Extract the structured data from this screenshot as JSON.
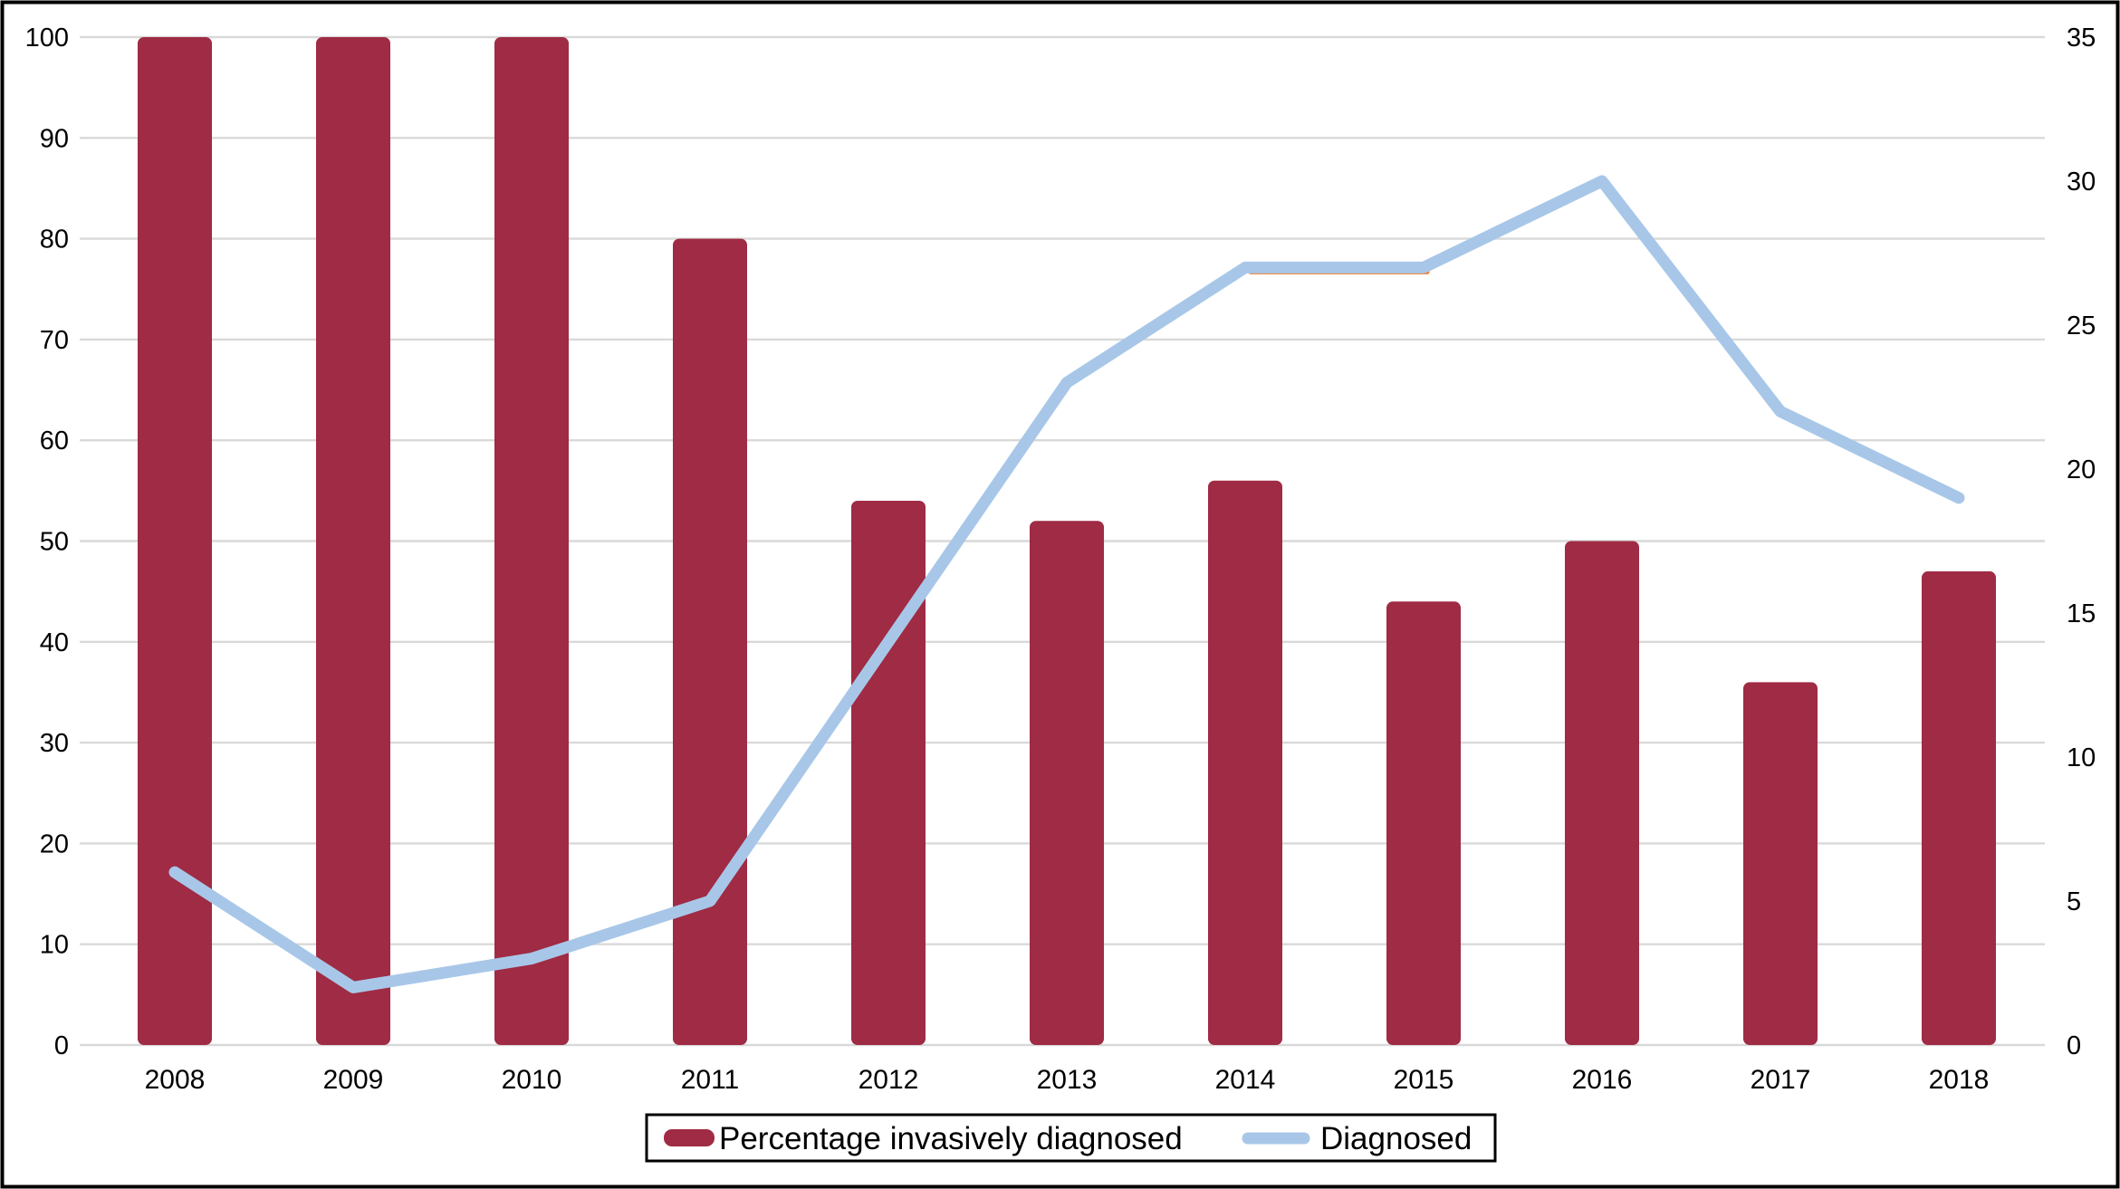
{
  "chart_data": {
    "type": "bar",
    "combo": true,
    "title": "",
    "categories": [
      "2008",
      "2009",
      "2010",
      "2011",
      "2012",
      "2013",
      "2014",
      "2015",
      "2016",
      "2017",
      "2018"
    ],
    "series": [
      {
        "name": "Percentage invasively diagnosed",
        "type": "bar",
        "axis": "left",
        "color": "#9f2b44",
        "values": [
          100,
          100,
          100,
          80,
          54,
          52,
          56,
          44,
          50,
          36,
          47
        ]
      },
      {
        "name": "Diagnosed",
        "type": "line",
        "axis": "right",
        "color": "#a8c7e8",
        "values": [
          6,
          2,
          3,
          5,
          14,
          23,
          27,
          27,
          30,
          22,
          19
        ]
      }
    ],
    "hidden_orange_segment": {
      "note": "thin orange line visible just below the blue line between 2014 and 2015",
      "from_category": "2014",
      "to_category": "2015",
      "value": 27,
      "color": "#ed7d31"
    },
    "left_axis": {
      "range": [
        0,
        100
      ],
      "ticks": [
        0,
        10,
        20,
        30,
        40,
        50,
        60,
        70,
        80,
        90,
        100
      ]
    },
    "right_axis": {
      "range": [
        0,
        35
      ],
      "ticks": [
        0,
        5,
        10,
        15,
        20,
        25,
        30,
        35
      ]
    },
    "grid": true,
    "gridline_color": "#d9d9d9",
    "legend": {
      "position": "bottom-center",
      "items": [
        {
          "label": "Percentage invasively diagnosed",
          "swatch": "bar",
          "color": "#9f2b44"
        },
        {
          "label": "Diagnosed",
          "swatch": "line",
          "color": "#a8c7e8"
        }
      ]
    },
    "xlabel": "",
    "ylabel": ""
  },
  "colors": {
    "background": "#ffffff",
    "border": "#000000",
    "bar": "#9f2b44",
    "line": "#a8c7e8",
    "orange": "#ed7d31",
    "gridline": "#d9d9d9",
    "text": "#000000"
  }
}
